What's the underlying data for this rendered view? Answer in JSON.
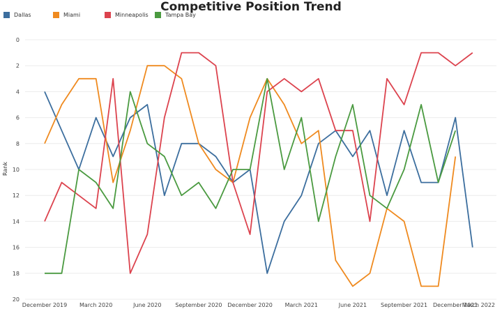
{
  "chart_data": {
    "type": "line",
    "title": "Competitive Position Trend",
    "xlabel": "",
    "ylabel": "Rank",
    "ylim": [
      0,
      20
    ],
    "y_inverted": true,
    "y_ticks": [
      0,
      2,
      4,
      6,
      8,
      10,
      12,
      14,
      16,
      18,
      20
    ],
    "x_tick_labels": [
      "December 2019",
      "March 2020",
      "June 2020",
      "September 2020",
      "December 2020",
      "March 2021",
      "June 2021",
      "September 2021",
      "December 2021",
      "March 2022"
    ],
    "x": [
      "2019-12",
      "2020-01",
      "2020-02",
      "2020-03",
      "2020-04",
      "2020-05",
      "2020-06",
      "2020-07",
      "2020-08",
      "2020-09",
      "2020-10",
      "2020-11",
      "2020-12",
      "2021-01",
      "2021-02",
      "2021-03",
      "2021-04",
      "2021-05",
      "2021-06",
      "2021-07",
      "2021-08",
      "2021-09",
      "2021-10",
      "2021-11",
      "2021-12",
      "2022-01",
      "2022-02",
      "2022-03"
    ],
    "legend_position": "top-left",
    "grid": true,
    "series": [
      {
        "name": "Dallas",
        "color": "#3c6e9e",
        "values": [
          4,
          7,
          10,
          6,
          9,
          6,
          5,
          12,
          8,
          8,
          9,
          11,
          10,
          18,
          14,
          12,
          8,
          7,
          9,
          7,
          12,
          7,
          11,
          11,
          6,
          16,
          null,
          null
        ]
      },
      {
        "name": "Miami",
        "color": "#ef8a1f",
        "values": [
          8,
          5,
          3,
          3,
          11,
          7,
          2,
          2,
          3,
          8,
          10,
          11,
          6,
          3,
          5,
          8,
          7,
          17,
          19,
          18,
          13,
          14,
          19,
          19,
          9,
          null,
          null,
          null
        ]
      },
      {
        "name": "Minneapolis",
        "color": "#dc434e",
        "values": [
          14,
          11,
          12,
          13,
          3,
          18,
          15,
          6,
          1,
          1,
          2,
          11,
          15,
          4,
          3,
          4,
          3,
          7,
          7,
          14,
          3,
          5,
          1,
          1,
          2,
          1,
          null,
          null
        ]
      },
      {
        "name": "Tampa Bay",
        "color": "#4a9a40",
        "values": [
          18,
          18,
          10,
          11,
          13,
          4,
          8,
          9,
          12,
          11,
          13,
          10,
          10,
          3,
          10,
          6,
          14,
          9,
          5,
          12,
          13,
          10,
          5,
          11,
          7,
          null,
          null,
          null
        ]
      }
    ]
  }
}
